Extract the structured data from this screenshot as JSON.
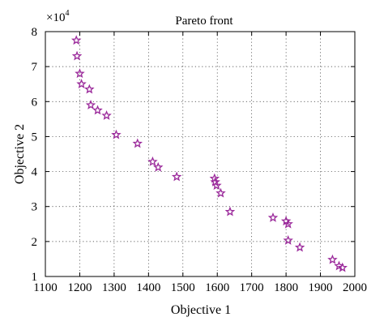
{
  "chart_data": {
    "type": "scatter",
    "title": "Pareto front",
    "xlabel": "Objective 1",
    "ylabel": "Objective 2",
    "y_multiplier_label": "×10",
    "y_multiplier_exp": "4",
    "xlim": [
      1100,
      2000
    ],
    "ylim": [
      1,
      8
    ],
    "x_ticks": [
      1100,
      1200,
      1300,
      1400,
      1500,
      1600,
      1700,
      1800,
      1900,
      2000
    ],
    "y_ticks": [
      1,
      2,
      3,
      4,
      5,
      6,
      7,
      8
    ],
    "grid": true,
    "marker": "star",
    "marker_color": "#9b2a9b",
    "series": [
      {
        "x": [
          1190,
          1192,
          1200,
          1205,
          1228,
          1232,
          1252,
          1278,
          1306,
          1368,
          1412,
          1428,
          1482,
          1592,
          1594,
          1598,
          1610,
          1637,
          1762,
          1800,
          1806,
          1806,
          1840,
          1935,
          1954,
          1964
        ],
        "y": [
          7.75,
          7.3,
          6.8,
          6.5,
          6.35,
          5.9,
          5.75,
          5.6,
          5.05,
          4.8,
          4.28,
          4.12,
          3.85,
          3.8,
          3.7,
          3.6,
          3.38,
          2.85,
          2.68,
          2.58,
          2.5,
          2.03,
          1.83,
          1.48,
          1.3,
          1.25
        ]
      }
    ]
  }
}
